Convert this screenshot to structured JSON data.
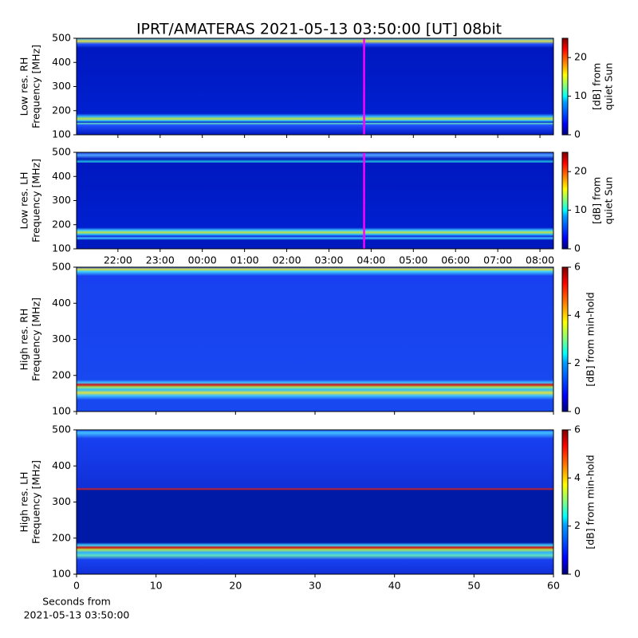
{
  "chart_data": [
    {
      "type": "heatmap",
      "title": "IPRT/AMATERAS 2021-05-13 03:50:00 [UT]   08bit",
      "ylabel": [
        "Low res. RH",
        "Frequency [MHz]"
      ],
      "ylim": [
        100,
        500
      ],
      "yticks": [
        100,
        200,
        300,
        400,
        500
      ],
      "xlim": [
        21.02,
        32.32
      ],
      "xticks": [
        {
          "value": 22,
          "label": "22:00"
        },
        {
          "value": 23,
          "label": "23:00"
        },
        {
          "value": 24,
          "label": "00:00"
        },
        {
          "value": 25,
          "label": "01:00"
        },
        {
          "value": 26,
          "label": "02:00"
        },
        {
          "value": 27,
          "label": "03:00"
        },
        {
          "value": 28,
          "label": "04:00"
        },
        {
          "value": 29,
          "label": "05:00"
        },
        {
          "value": 30,
          "label": "06:00"
        },
        {
          "value": 31,
          "label": "07:00"
        },
        {
          "value": 32,
          "label": "08:00"
        }
      ],
      "xtick_labels": false,
      "vline": 27.833,
      "vline_color": "#ff00ff",
      "colorbar": {
        "label": [
          "[dB] from",
          "quiet Sun"
        ],
        "lim": [
          0,
          25
        ],
        "ticks": [
          0,
          10,
          20
        ],
        "colormap": "jet"
      }
    },
    {
      "type": "heatmap",
      "ylabel": [
        "Low res. LH",
        "Frequency [MHz]"
      ],
      "ylim": [
        100,
        500
      ],
      "yticks": [
        100,
        200,
        300,
        400,
        500
      ],
      "xlim": [
        21.02,
        32.32
      ],
      "xticks": [
        {
          "value": 22,
          "label": "22:00"
        },
        {
          "value": 23,
          "label": "23:00"
        },
        {
          "value": 24,
          "label": "00:00"
        },
        {
          "value": 25,
          "label": "01:00"
        },
        {
          "value": 26,
          "label": "02:00"
        },
        {
          "value": 27,
          "label": "03:00"
        },
        {
          "value": 28,
          "label": "04:00"
        },
        {
          "value": 29,
          "label": "05:00"
        },
        {
          "value": 30,
          "label": "06:00"
        },
        {
          "value": 31,
          "label": "07:00"
        },
        {
          "value": 32,
          "label": "08:00"
        }
      ],
      "xtick_labels": true,
      "vline": 27.833,
      "vline_color": "#ff00ff",
      "colorbar": {
        "label": [
          "[dB] from",
          "quiet Sun"
        ],
        "lim": [
          0,
          25
        ],
        "ticks": [
          0,
          10,
          20
        ],
        "colormap": "jet"
      }
    },
    {
      "type": "heatmap",
      "ylabel": [
        "High res. RH",
        "Frequency [MHz]"
      ],
      "ylim": [
        100,
        500
      ],
      "yticks": [
        100,
        200,
        300,
        400,
        500
      ],
      "xlim": [
        0,
        60
      ],
      "xticks": [
        0,
        10,
        20,
        30,
        40,
        50,
        60
      ],
      "xtick_labels": false,
      "colorbar": {
        "label": [
          "[dB] from min-hold"
        ],
        "lim": [
          0,
          6
        ],
        "ticks": [
          0,
          2,
          4,
          6
        ],
        "colormap": "jet"
      }
    },
    {
      "type": "heatmap",
      "ylabel": [
        "High res. LH",
        "Frequency [MHz]"
      ],
      "ylim": [
        100,
        500
      ],
      "yticks": [
        100,
        200,
        300,
        400,
        500
      ],
      "xlim": [
        0,
        60
      ],
      "xticks": [
        0,
        10,
        20,
        30,
        40,
        50,
        60
      ],
      "xtick_labels": true,
      "xlabel": [
        "Seconds from",
        "2021-05-13 03:50:00"
      ],
      "colorbar": {
        "label": [
          "[dB] from min-hold"
        ],
        "lim": [
          0,
          6
        ],
        "ticks": [
          0,
          2,
          4,
          6
        ],
        "colormap": "jet"
      }
    }
  ]
}
